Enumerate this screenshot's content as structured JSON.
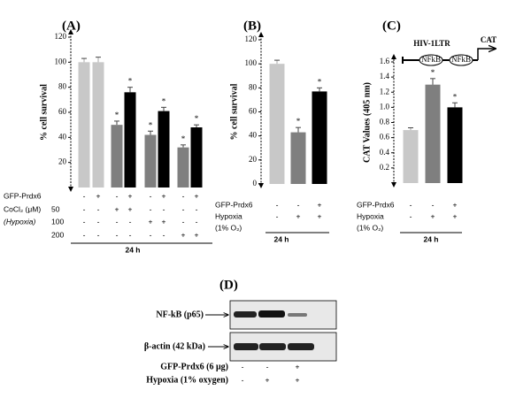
{
  "chart_data": [
    {
      "type": "bar",
      "title": "(A)",
      "y_label": "% cell survival",
      "values": [
        100,
        100,
        50,
        76,
        42,
        61,
        32,
        48
      ],
      "errors": [
        3,
        4,
        3,
        4,
        3,
        3,
        2,
        2
      ],
      "colors": [
        "#c8c8c8",
        "#c8c8c8",
        "#7f7f7f",
        "#000000",
        "#7f7f7f",
        "#000000",
        "#7f7f7f",
        "#000000"
      ],
      "markers": [
        null,
        null,
        "*",
        "*",
        "*",
        "*",
        "*",
        "*"
      ],
      "ylim": [
        0,
        120
      ],
      "yticks": [
        20,
        40,
        60,
        80,
        100,
        120
      ],
      "conditions": [
        {
          "label": "GFP-Prdx6",
          "sublabel": null,
          "marks": [
            "-",
            "+",
            "-",
            "+",
            "-",
            "+",
            "-",
            "+"
          ]
        },
        {
          "label": "CoCl₂ (μM)",
          "sublabel": "50",
          "marks": [
            "-",
            "-",
            "+",
            "+",
            "-",
            "-",
            "-",
            "-"
          ]
        },
        {
          "label": "(Hypoxia)",
          "sublabel": "100",
          "marks": [
            "-",
            "-",
            "-",
            "-",
            "+",
            "+",
            "-",
            "-"
          ]
        },
        {
          "label": null,
          "sublabel": "200",
          "marks": [
            "-",
            "-",
            "-",
            "-",
            "-",
            "-",
            "+",
            "+"
          ]
        }
      ],
      "time": "24 h"
    },
    {
      "type": "bar",
      "title": "(B)",
      "y_label": "% cell survival",
      "values": [
        100,
        43,
        77
      ],
      "errors": [
        3,
        4,
        3
      ],
      "colors": [
        "#c8c8c8",
        "#7f7f7f",
        "#000000"
      ],
      "markers": [
        null,
        "*",
        "*"
      ],
      "ylim": [
        0,
        120
      ],
      "yticks": [
        0,
        20,
        40,
        60,
        80,
        100,
        120
      ],
      "conditions": [
        {
          "label": "GFP-Prdx6",
          "sublabel": null,
          "marks": [
            "-",
            "-",
            "+"
          ]
        },
        {
          "label": "Hypoxia",
          "sublabel": null,
          "marks": [
            "-",
            "+",
            "+"
          ]
        }
      ],
      "note": "(1% O₂)",
      "time": "24 h"
    },
    {
      "type": "bar",
      "title": "(C)",
      "y_label": "CAT Values (405 nm)",
      "values": [
        0.7,
        1.3,
        1.0
      ],
      "errors": [
        0.03,
        0.08,
        0.06
      ],
      "colors": [
        "#c8c8c8",
        "#7f7f7f",
        "#000000"
      ],
      "markers": [
        null,
        "*",
        "*"
      ],
      "ylim": [
        0,
        1.6
      ],
      "yticks": [
        0.2,
        0.4,
        0.6,
        0.8,
        {
          "value": 1,
          "label": "1.0"
        },
        1.2,
        1.4,
        1.6
      ],
      "conditions": [
        {
          "label": "GFP-Prdx6",
          "sublabel": null,
          "marks": [
            "-",
            "-",
            "+"
          ]
        },
        {
          "label": "Hypoxia",
          "sublabel": null,
          "marks": [
            "-",
            "+",
            "+"
          ]
        }
      ],
      "note": "(1% O₂)",
      "time": "24 h",
      "inset": {
        "label": "HIV-1LTR",
        "sites": [
          "NFkB",
          "NFkB"
        ],
        "reporter": "CAT"
      }
    }
  ],
  "blot": {
    "title": "(D)",
    "bands": [
      "NF-kB (p65)",
      "β-actin (42 kDa)"
    ],
    "conditions": [
      {
        "label": "GFP-Prdx6 (6 μg)",
        "marks": [
          "-",
          "-",
          "+"
        ]
      },
      {
        "label": "Hypoxia (1% oxygen)",
        "marks": [
          "-",
          "+",
          "+"
        ]
      }
    ]
  }
}
